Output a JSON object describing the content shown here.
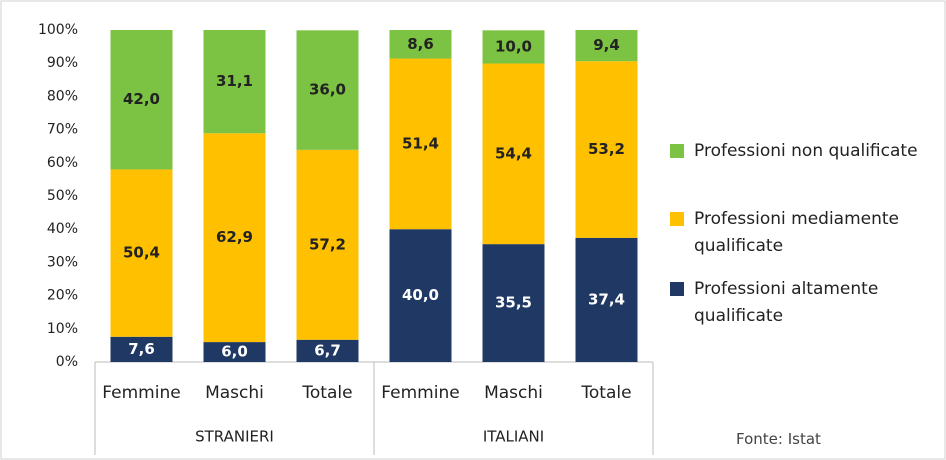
{
  "chart_data": {
    "type": "stacked_bar",
    "categories": [
      "Femmine",
      "Maschi",
      "Totale",
      "Femmine",
      "Maschi",
      "Totale"
    ],
    "group_labels": [
      "STRANIERI",
      "ITALIANI"
    ],
    "series": [
      {
        "name": "Professioni altamente qualificate",
        "color": "#1f3864",
        "label_color": "#ffffff",
        "values": [
          7.6,
          6.0,
          6.7,
          40.0,
          35.5,
          37.4
        ],
        "value_labels": [
          "7,6",
          "6,0",
          "6,7",
          "40,0",
          "35,5",
          "37,4"
        ]
      },
      {
        "name": "Professioni mediamente qualificate",
        "color": "#ffc000",
        "label_color": "#222222",
        "values": [
          50.4,
          62.9,
          57.2,
          51.4,
          54.4,
          53.2
        ],
        "value_labels": [
          "50,4",
          "62,9",
          "57,2",
          "51,4",
          "54,4",
          "53,2"
        ]
      },
      {
        "name": "Professioni non qualificate",
        "color": "#7cc243",
        "label_color": "#222222",
        "values": [
          42.0,
          31.1,
          36.0,
          8.6,
          10.0,
          9.4
        ],
        "value_labels": [
          "42,0",
          "31,1",
          "36,0",
          "8,6",
          "10,0",
          "9,4"
        ]
      }
    ],
    "ylim": [
      0,
      100
    ],
    "yticks": [
      {
        "value": 0,
        "label": "0%"
      },
      {
        "value": 10,
        "label": "10%"
      },
      {
        "value": 20,
        "label": "20%"
      },
      {
        "value": 30,
        "label": "30%"
      },
      {
        "value": 40,
        "label": "40%"
      },
      {
        "value": 50,
        "label": "50%"
      },
      {
        "value": 60,
        "label": "60%"
      },
      {
        "value": 70,
        "label": "70%"
      },
      {
        "value": 80,
        "label": "80%"
      },
      {
        "value": 90,
        "label": "90%"
      },
      {
        "value": 100,
        "label": "100%"
      }
    ],
    "grid": false,
    "legend_position": "right",
    "source": "Fonte: Istat"
  }
}
